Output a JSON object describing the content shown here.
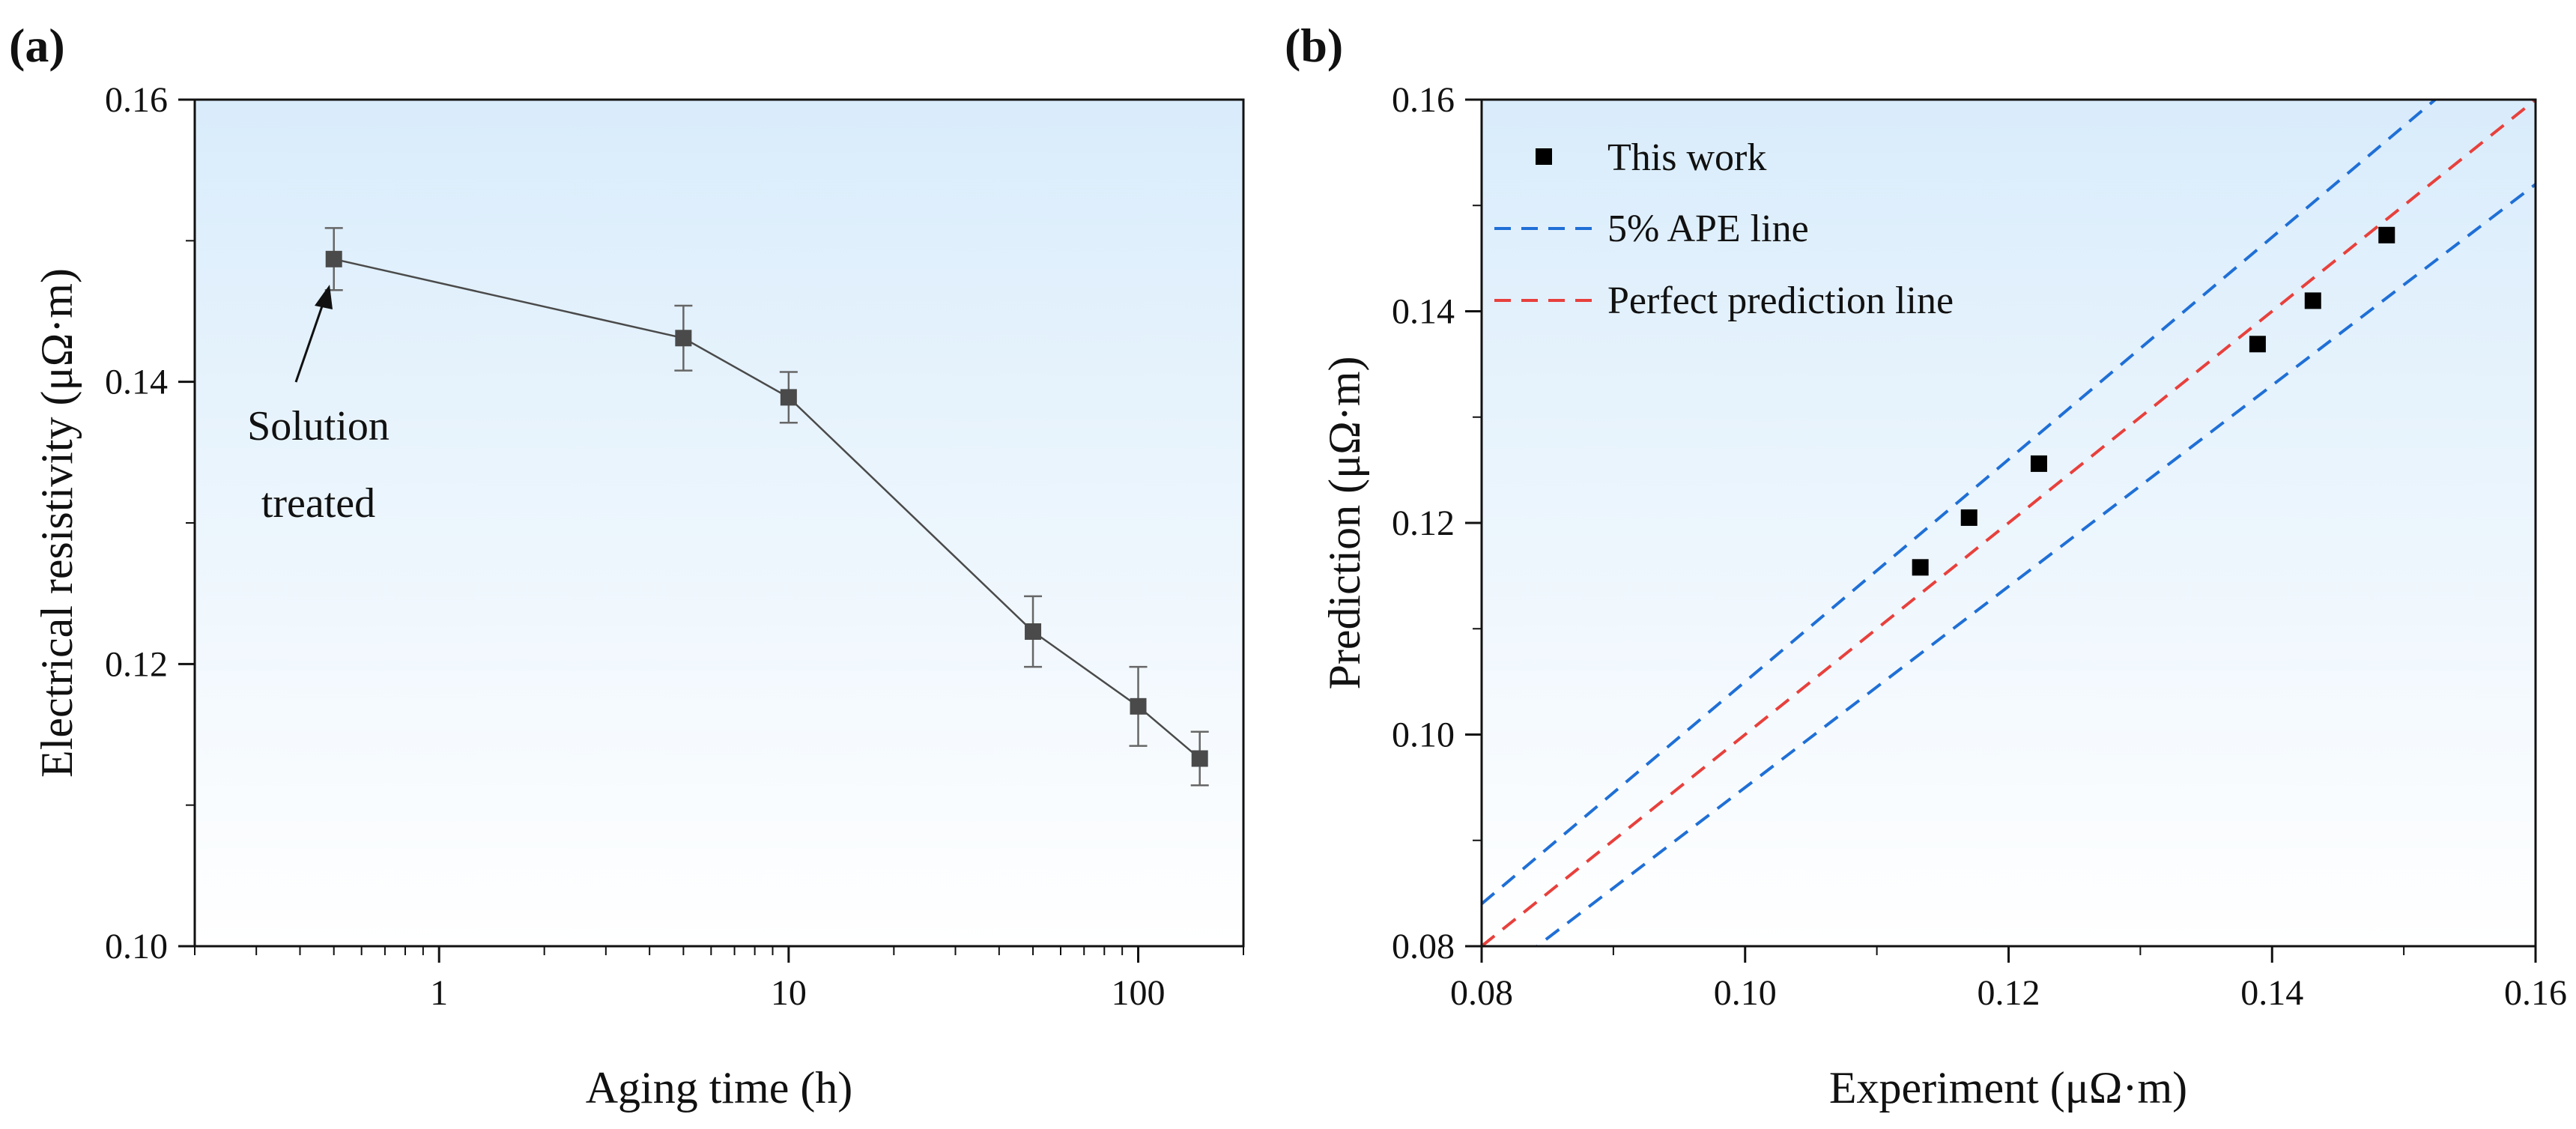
{
  "chart_data": [
    {
      "panel_label": "(a)",
      "type": "line",
      "xscale": "log",
      "xlabel": "Aging time (h)",
      "ylabel": "Electrical resistivity (μΩ·m)",
      "xlim": [
        0.2,
        200
      ],
      "ylim": [
        0.1,
        0.16
      ],
      "xticks": [
        1,
        10,
        100
      ],
      "xtick_labels": [
        "1",
        "10",
        "100"
      ],
      "yticks": [
        0.1,
        0.12,
        0.14,
        0.16
      ],
      "ytick_labels": [
        "0.10",
        "0.12",
        "0.14",
        "0.16"
      ],
      "series": [
        {
          "name": "Electrical resistivity",
          "marker": "square",
          "color": "#4a4a4a",
          "x": [
            0.5,
            5,
            10,
            50,
            100,
            150
          ],
          "y": [
            0.1487,
            0.1431,
            0.1389,
            0.1223,
            0.117,
            0.1133
          ],
          "error": [
            0.0022,
            0.0023,
            0.0018,
            0.0025,
            0.0028,
            0.0019
          ]
        }
      ],
      "annotation": {
        "lines": [
          "Solution",
          "treated"
        ],
        "points_to": [
          0.5,
          0.1487
        ]
      },
      "grid": false
    },
    {
      "panel_label": "(b)",
      "type": "scatter",
      "xlabel": "Experiment (μΩ·m)",
      "ylabel": "Prediction (μΩ·m)",
      "xlim": [
        0.08,
        0.16
      ],
      "ylim": [
        0.08,
        0.16
      ],
      "xticks": [
        0.08,
        0.1,
        0.12,
        0.14,
        0.16
      ],
      "xtick_labels": [
        "0.08",
        "0.10",
        "0.12",
        "0.14",
        "0.16"
      ],
      "yticks": [
        0.08,
        0.1,
        0.12,
        0.14,
        0.16
      ],
      "ytick_labels": [
        "0.08",
        "0.10",
        "0.12",
        "0.14",
        "0.16"
      ],
      "series": [
        {
          "name": "This work",
          "marker": "square",
          "color": "#000000",
          "x": [
            0.1133,
            0.117,
            0.1223,
            0.1389,
            0.1431,
            0.1487
          ],
          "y": [
            0.1158,
            0.1205,
            0.1256,
            0.1369,
            0.141,
            0.1472
          ]
        }
      ],
      "lines": [
        {
          "name": "5% APE line",
          "style": "dashed",
          "color": "#1f6fd6",
          "slope": 1.05
        },
        {
          "name": "5% APE line",
          "style": "dashed",
          "color": "#1f6fd6",
          "slope": 0.95,
          "in_legend": false
        },
        {
          "name": "Perfect prediction line",
          "style": "dashed",
          "color": "#e8403c",
          "slope": 1.0
        }
      ],
      "legend": {
        "position": "top-left",
        "entries": [
          "This work",
          "5% APE line",
          "Perfect prediction line"
        ]
      },
      "grid": false
    }
  ],
  "colors": {
    "plot_bg_top": "#d9ecfb",
    "plot_bg_bottom": "#ffffff"
  }
}
